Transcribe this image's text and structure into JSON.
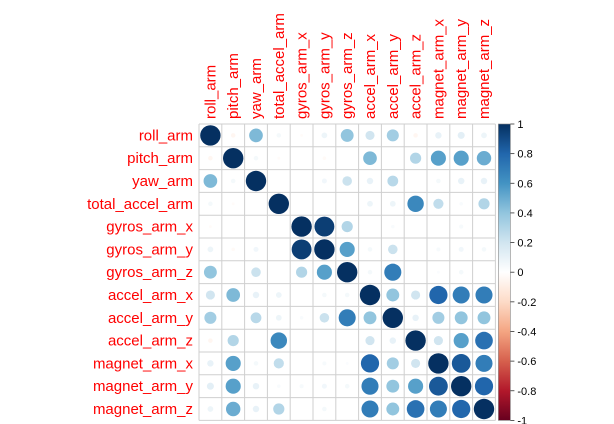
{
  "chart_data": {
    "type": "heatmap",
    "style": "correlation-circles",
    "variables": [
      "roll_arm",
      "pitch_arm",
      "yaw_arm",
      "total_accel_arm",
      "gyros_arm_x",
      "gyros_arm_y",
      "gyros_arm_z",
      "accel_arm_x",
      "accel_arm_y",
      "accel_arm_z",
      "magnet_arm_x",
      "magnet_arm_y",
      "magnet_arm_z"
    ],
    "values": [
      [
        1.0,
        -0.05,
        0.45,
        0.05,
        -0.02,
        0.08,
        0.4,
        0.2,
        0.35,
        -0.05,
        0.1,
        0.12,
        0.08
      ],
      [
        -0.05,
        1.0,
        0.05,
        -0.02,
        0.0,
        -0.03,
        0.0,
        0.45,
        0.0,
        0.3,
        0.55,
        0.55,
        0.5
      ],
      [
        0.45,
        0.05,
        1.0,
        0.0,
        0.0,
        0.06,
        0.22,
        0.1,
        0.28,
        0.0,
        0.05,
        0.1,
        0.1
      ],
      [
        0.05,
        -0.02,
        0.0,
        1.0,
        0.0,
        0.0,
        0.0,
        0.08,
        0.08,
        0.65,
        0.25,
        0.03,
        0.3
      ],
      [
        -0.02,
        0.0,
        0.0,
        0.0,
        1.0,
        0.95,
        0.3,
        0.0,
        0.03,
        0.0,
        0.0,
        0.04,
        0.0
      ],
      [
        0.08,
        -0.03,
        0.06,
        0.0,
        0.95,
        1.0,
        0.55,
        0.05,
        0.22,
        0.0,
        0.04,
        0.06,
        0.05
      ],
      [
        0.4,
        0.0,
        0.22,
        0.0,
        0.3,
        0.55,
        1.0,
        0.05,
        0.7,
        0.0,
        0.02,
        0.05,
        0.0
      ],
      [
        0.2,
        0.45,
        0.1,
        0.08,
        0.0,
        0.05,
        0.05,
        1.0,
        0.4,
        0.2,
        0.8,
        0.7,
        0.7
      ],
      [
        0.35,
        0.0,
        0.28,
        0.08,
        0.03,
        0.22,
        0.7,
        0.4,
        1.0,
        0.1,
        0.35,
        0.4,
        0.4
      ],
      [
        -0.05,
        0.3,
        0.0,
        0.65,
        0.0,
        0.0,
        0.0,
        0.2,
        0.1,
        1.0,
        0.2,
        0.55,
        0.75
      ],
      [
        0.1,
        0.55,
        0.05,
        0.25,
        0.0,
        0.04,
        0.02,
        0.8,
        0.35,
        0.2,
        1.0,
        0.85,
        0.7
      ],
      [
        0.12,
        0.55,
        0.1,
        0.03,
        0.04,
        0.06,
        0.05,
        0.7,
        0.4,
        0.55,
        0.85,
        1.0,
        0.8
      ],
      [
        0.08,
        0.5,
        0.1,
        0.3,
        0.0,
        0.05,
        0.0,
        0.7,
        0.4,
        0.75,
        0.7,
        0.8,
        1.0
      ]
    ],
    "colorbar_ticks": [
      "1",
      "0.8",
      "0.6",
      "0.4",
      "0.2",
      "0",
      "-0.2",
      "-0.4",
      "-0.6",
      "-0.8",
      "-1"
    ],
    "range": [
      -1,
      1
    ],
    "label_color": "#ff0000",
    "grid_color": "#cfcfcf",
    "scale_colors": [
      "#67001f",
      "#b2182b",
      "#d6604d",
      "#f4a582",
      "#fddbc7",
      "#ffffff",
      "#d1e5f0",
      "#92c5de",
      "#4393c3",
      "#2166ac",
      "#053061"
    ]
  }
}
